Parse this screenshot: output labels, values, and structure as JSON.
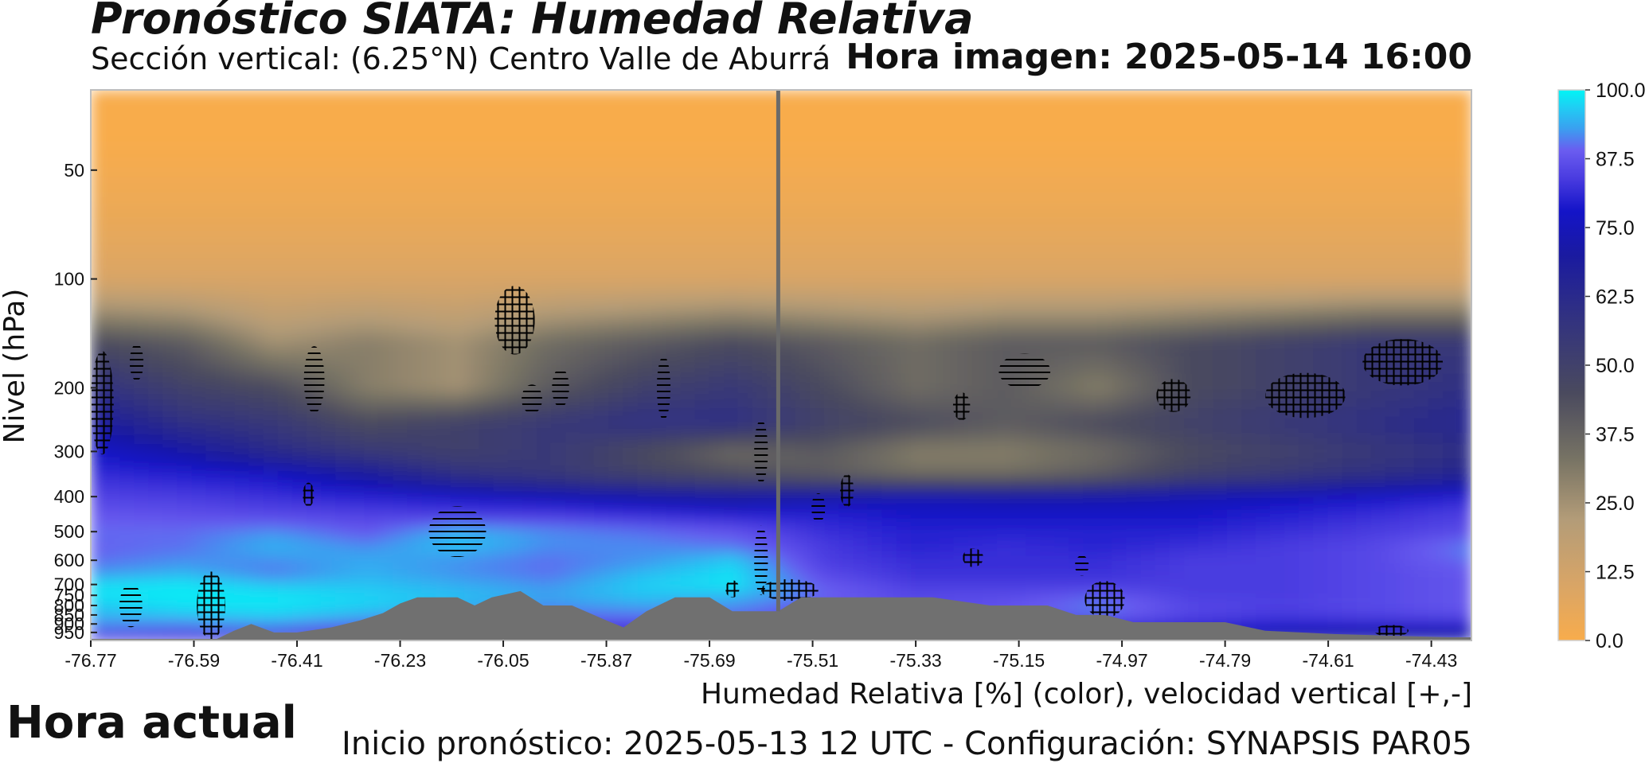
{
  "header": {
    "title": "Pronóstico SIATA: Humedad Relativa",
    "subtitle": "Sección vertical: (6.25°N) Centro Valle de Aburrá",
    "image_time": "Hora imagen: 2025-05-14 16:00"
  },
  "footer": {
    "xlabel": "Humedad Relativa [%] (color), velocidad vertical [+,-]",
    "forecast_init": "Inicio pronóstico: 2025-05-13 12 UTC - Configuración: SYNAPSIS PAR05",
    "current_time_label": "Hora actual"
  },
  "chart_data": {
    "type": "heatmap",
    "ylabel": "Nivel (hPa)",
    "x_ticks": [
      "-76.77",
      "-76.59",
      "-76.41",
      "-76.23",
      "-76.05",
      "-75.87",
      "-75.69",
      "-75.51",
      "-75.33",
      "-75.15",
      "-74.97",
      "-74.79",
      "-74.61",
      "-74.43"
    ],
    "x_tick_values": [
      -76.77,
      -76.59,
      -76.41,
      -76.23,
      -76.05,
      -75.87,
      -75.69,
      -75.51,
      -75.33,
      -75.15,
      -74.97,
      -74.79,
      -74.61,
      -74.43
    ],
    "xlim": [
      -76.77,
      -74.36
    ],
    "y_ticks": [
      "50",
      "100",
      "200",
      "300",
      "400",
      "500",
      "600",
      "700",
      "750",
      "800",
      "850",
      "900",
      "950"
    ],
    "y_tick_values": [
      50,
      100,
      200,
      300,
      400,
      500,
      600,
      700,
      750,
      800,
      850,
      900,
      950
    ],
    "ylim": [
      1000,
      30
    ],
    "colorbar": {
      "ticks": [
        "100.0",
        "87.5",
        "75.0",
        "62.5",
        "50.0",
        "37.5",
        "25.0",
        "12.5",
        "0.0"
      ],
      "range": [
        0,
        100
      ],
      "stops": [
        {
          "v": 0,
          "c": "#f8ac4c"
        },
        {
          "v": 10,
          "c": "#d9a566"
        },
        {
          "v": 22,
          "c": "#b39c78"
        },
        {
          "v": 33,
          "c": "#777364"
        },
        {
          "v": 45,
          "c": "#4a4a5e"
        },
        {
          "v": 58,
          "c": "#33337f"
        },
        {
          "v": 70,
          "c": "#1a1aa0"
        },
        {
          "v": 78,
          "c": "#1414c8"
        },
        {
          "v": 84,
          "c": "#4a3ce0"
        },
        {
          "v": 89,
          "c": "#6a5cf0"
        },
        {
          "v": 93,
          "c": "#3aa0f0"
        },
        {
          "v": 97,
          "c": "#1ed0f4"
        },
        {
          "v": 100,
          "c": "#00f5f5"
        }
      ]
    },
    "current_time_longitude": -75.57,
    "terrain_pressure": [
      {
        "lon": -76.77,
        "p": 990
      },
      {
        "lon": -76.55,
        "p": 990
      },
      {
        "lon": -76.52,
        "p": 940
      },
      {
        "lon": -76.49,
        "p": 900
      },
      {
        "lon": -76.45,
        "p": 950
      },
      {
        "lon": -76.41,
        "p": 950
      },
      {
        "lon": -76.35,
        "p": 920
      },
      {
        "lon": -76.3,
        "p": 880
      },
      {
        "lon": -76.26,
        "p": 840
      },
      {
        "lon": -76.23,
        "p": 790
      },
      {
        "lon": -76.2,
        "p": 760
      },
      {
        "lon": -76.13,
        "p": 760
      },
      {
        "lon": -76.1,
        "p": 800
      },
      {
        "lon": -76.07,
        "p": 760
      },
      {
        "lon": -76.02,
        "p": 730
      },
      {
        "lon": -75.98,
        "p": 800
      },
      {
        "lon": -75.93,
        "p": 800
      },
      {
        "lon": -75.87,
        "p": 880
      },
      {
        "lon": -75.84,
        "p": 920
      },
      {
        "lon": -75.8,
        "p": 830
      },
      {
        "lon": -75.75,
        "p": 760
      },
      {
        "lon": -75.69,
        "p": 760
      },
      {
        "lon": -75.65,
        "p": 830
      },
      {
        "lon": -75.57,
        "p": 830
      },
      {
        "lon": -75.53,
        "p": 760
      },
      {
        "lon": -75.3,
        "p": 760
      },
      {
        "lon": -75.2,
        "p": 800
      },
      {
        "lon": -75.1,
        "p": 800
      },
      {
        "lon": -75.05,
        "p": 850
      },
      {
        "lon": -75.0,
        "p": 850
      },
      {
        "lon": -74.95,
        "p": 890
      },
      {
        "lon": -74.79,
        "p": 890
      },
      {
        "lon": -74.72,
        "p": 940
      },
      {
        "lon": -74.6,
        "p": 960
      },
      {
        "lon": -74.4,
        "p": 980
      },
      {
        "lon": -74.36,
        "p": 980
      }
    ],
    "humidity_field": {
      "x": [
        -76.77,
        -76.61,
        -76.45,
        -76.29,
        -76.13,
        -75.97,
        -75.81,
        -75.65,
        -75.49,
        -75.33,
        -75.17,
        -75.01,
        -74.85,
        -74.69,
        -74.53,
        -74.36
      ],
      "y": [
        40,
        100,
        150,
        200,
        250,
        300,
        350,
        400,
        450,
        500,
        550,
        600,
        650,
        700,
        750,
        800,
        850,
        900,
        950,
        1000
      ],
      "values": [
        [
          0,
          0,
          0,
          0,
          0,
          0,
          0,
          0,
          0,
          0,
          0,
          0,
          0,
          0,
          0,
          0
        ],
        [
          10,
          10,
          10,
          10,
          10,
          10,
          10,
          10,
          10,
          10,
          10,
          10,
          10,
          10,
          10,
          10
        ],
        [
          45,
          40,
          25,
          30,
          25,
          35,
          40,
          45,
          40,
          35,
          40,
          40,
          45,
          50,
          55,
          55
        ],
        [
          60,
          50,
          45,
          30,
          25,
          40,
          50,
          55,
          45,
          35,
          40,
          30,
          45,
          50,
          55,
          60
        ],
        [
          70,
          60,
          55,
          45,
          50,
          55,
          60,
          60,
          50,
          45,
          40,
          45,
          50,
          55,
          60,
          65
        ],
        [
          78,
          72,
          62,
          55,
          50,
          55,
          45,
          35,
          40,
          30,
          30,
          35,
          45,
          50,
          55,
          60
        ],
        [
          82,
          80,
          78,
          70,
          60,
          55,
          50,
          45,
          40,
          35,
          35,
          40,
          50,
          55,
          60,
          65
        ],
        [
          85,
          84,
          82,
          80,
          78,
          75,
          72,
          70,
          72,
          74,
          72,
          72,
          74,
          76,
          78,
          80
        ],
        [
          88,
          87,
          86,
          85,
          84,
          84,
          82,
          80,
          80,
          78,
          78,
          78,
          78,
          80,
          82,
          85
        ],
        [
          90,
          90,
          92,
          88,
          95,
          92,
          90,
          88,
          82,
          80,
          80,
          80,
          80,
          82,
          84,
          86
        ],
        [
          89,
          90,
          95,
          92,
          96,
          92,
          92,
          90,
          84,
          80,
          82,
          80,
          82,
          84,
          86,
          92
        ],
        [
          90,
          92,
          92,
          94,
          92,
          90,
          92,
          97,
          84,
          82,
          82,
          82,
          84,
          84,
          86,
          90
        ],
        [
          92,
          94,
          90,
          94,
          92,
          90,
          95,
          98,
          86,
          82,
          82,
          82,
          84,
          84,
          86,
          88
        ],
        [
          98,
          99,
          96,
          96,
          94,
          92,
          97,
          99,
          88,
          84,
          84,
          84,
          84,
          84,
          86,
          88
        ],
        [
          99,
          99,
          99,
          97,
          96,
          94,
          96,
          95,
          90,
          86,
          86,
          88,
          84,
          84,
          86,
          88
        ],
        [
          96,
          99,
          99,
          98,
          95,
          92,
          94,
          92,
          88,
          86,
          88,
          92,
          86,
          85,
          86,
          88
        ],
        [
          95,
          96,
          97,
          94,
          92,
          90,
          90,
          90,
          86,
          86,
          88,
          90,
          86,
          84,
          86,
          88
        ],
        [
          92,
          92,
          94,
          90,
          88,
          86,
          86,
          86,
          84,
          84,
          84,
          84,
          82,
          80,
          80,
          80
        ],
        [
          88,
          86,
          86,
          84,
          84,
          82,
          82,
          82,
          80,
          80,
          80,
          80,
          78,
          74,
          72,
          72
        ],
        [
          80,
          78,
          76,
          76,
          74,
          74,
          74,
          74,
          72,
          72,
          72,
          72,
          72,
          70,
          70,
          70
        ]
      ]
    },
    "vertical_velocity_hatches": [
      {
        "type": "+",
        "lon": -76.75,
        "p": 220,
        "rx": 0.02,
        "rp": 70
      },
      {
        "type": "+",
        "lon": -76.56,
        "p": 800,
        "rx": 0.025,
        "rp": 170
      },
      {
        "type": "+",
        "lon": -76.03,
        "p": 130,
        "rx": 0.035,
        "rp": 28
      },
      {
        "type": "+",
        "lon": -75.65,
        "p": 720,
        "rx": 0.012,
        "rp": 40
      },
      {
        "type": "+",
        "lon": -75.55,
        "p": 725,
        "rx": 0.05,
        "rp": 50
      },
      {
        "type": "+",
        "lon": -75.45,
        "p": 385,
        "rx": 0.012,
        "rp": 40
      },
      {
        "type": "+",
        "lon": -75.25,
        "p": 225,
        "rx": 0.015,
        "rp": 20
      },
      {
        "type": "+",
        "lon": -75.23,
        "p": 590,
        "rx": 0.018,
        "rp": 35
      },
      {
        "type": "+",
        "lon": -75.0,
        "p": 770,
        "rx": 0.035,
        "rp": 90
      },
      {
        "type": "+",
        "lon": -74.88,
        "p": 210,
        "rx": 0.03,
        "rp": 22
      },
      {
        "type": "+",
        "lon": -74.65,
        "p": 210,
        "rx": 0.07,
        "rp": 30
      },
      {
        "type": "+",
        "lon": -74.48,
        "p": 170,
        "rx": 0.07,
        "rp": 25
      },
      {
        "type": "+",
        "lon": -74.5,
        "p": 940,
        "rx": 0.03,
        "rp": 35
      },
      {
        "type": "+",
        "lon": -76.39,
        "p": 395,
        "rx": 0.01,
        "rp": 30
      },
      {
        "type": "-",
        "lon": -76.7,
        "p": 800,
        "rx": 0.02,
        "rp": 110
      },
      {
        "type": "-",
        "lon": -76.69,
        "p": 170,
        "rx": 0.012,
        "rp": 20
      },
      {
        "type": "-",
        "lon": -76.38,
        "p": 190,
        "rx": 0.018,
        "rp": 40
      },
      {
        "type": "-",
        "lon": -76.13,
        "p": 500,
        "rx": 0.05,
        "rp": 80
      },
      {
        "type": "-",
        "lon": -75.95,
        "p": 200,
        "rx": 0.015,
        "rp": 25
      },
      {
        "type": "-",
        "lon": -75.77,
        "p": 200,
        "rx": 0.012,
        "rp": 40
      },
      {
        "type": "-",
        "lon": -75.6,
        "p": 300,
        "rx": 0.012,
        "rp": 60
      },
      {
        "type": "-",
        "lon": -75.6,
        "p": 600,
        "rx": 0.012,
        "rp": 130
      },
      {
        "type": "-",
        "lon": -75.5,
        "p": 430,
        "rx": 0.012,
        "rp": 40
      },
      {
        "type": "-",
        "lon": -75.14,
        "p": 180,
        "rx": 0.045,
        "rp": 20
      },
      {
        "type": "-",
        "lon": -75.04,
        "p": 620,
        "rx": 0.012,
        "rp": 40
      },
      {
        "type": "-",
        "lon": -76.0,
        "p": 215,
        "rx": 0.018,
        "rp": 20
      }
    ],
    "colors": {
      "terrain": "#707070",
      "current_time_line": "#6a6a6a",
      "frame": "#bdbdbd"
    }
  }
}
